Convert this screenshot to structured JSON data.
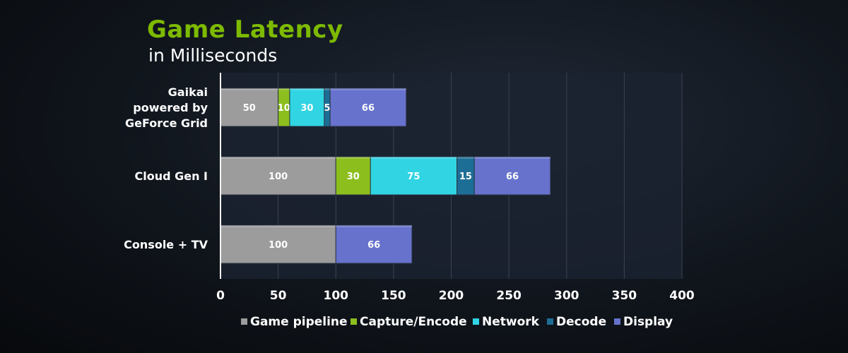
{
  "title": "Game Latency",
  "subtitle": "in Milliseconds",
  "colors": {
    "title": "#7dba00",
    "plot_background": "#1b2230",
    "gridline": "#3a4352",
    "axis_text": "#ffffff",
    "series": [
      "#9c9c9c",
      "#8cbf1e",
      "#31d4e3",
      "#1d6e96",
      "#6672cc"
    ]
  },
  "chart_data": {
    "type": "bar",
    "orientation": "horizontal",
    "stacked": true,
    "categories": [
      "Gaikai powered by GeForce Grid",
      "Cloud Gen I",
      "Console + TV"
    ],
    "category_lines": [
      [
        "Gaikai",
        "powered by",
        "GeForce Grid"
      ],
      [
        "Cloud Gen I"
      ],
      [
        "Console + TV"
      ]
    ],
    "series": [
      {
        "name": "Game pipeline",
        "values": [
          50,
          100,
          100
        ],
        "labels": [
          "50",
          "100",
          "100"
        ]
      },
      {
        "name": "Capture/Encode",
        "values": [
          10,
          30,
          null
        ],
        "labels": [
          "10",
          "30",
          ""
        ]
      },
      {
        "name": "Network",
        "values": [
          30,
          75,
          null
        ],
        "labels": [
          "30",
          "75",
          ""
        ]
      },
      {
        "name": "Decode",
        "values": [
          5,
          15,
          null
        ],
        "labels": [
          "5",
          "15",
          ""
        ]
      },
      {
        "name": "Display",
        "values": [
          66,
          66,
          66
        ],
        "labels": [
          "66",
          "66",
          "66"
        ]
      }
    ],
    "xlim": [
      0,
      400
    ],
    "xticks": [
      0,
      50,
      100,
      150,
      200,
      250,
      300,
      350,
      400
    ],
    "xtick_labels": [
      "0",
      "50",
      "100",
      "150",
      "200",
      "250",
      "300",
      "350",
      "400"
    ],
    "grid": true,
    "legend_position": "bottom"
  }
}
